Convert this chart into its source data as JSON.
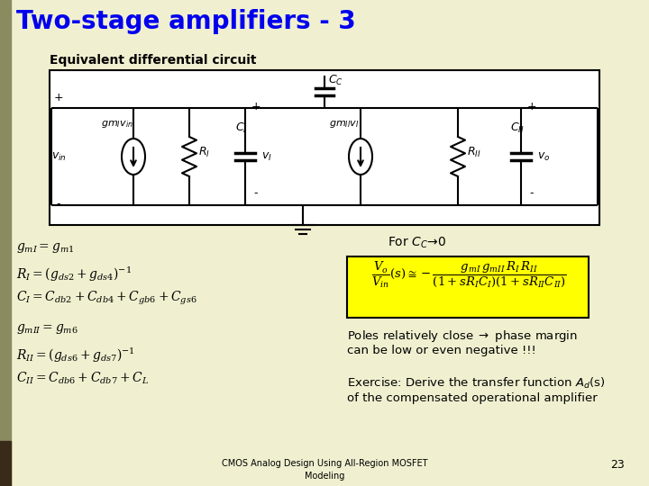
{
  "title": "Two-stage amplifiers - 3",
  "subtitle": "Equivalent differential circuit",
  "bg_color": "#f0f0d0",
  "title_color": "#0000ee",
  "footer_text": "CMOS Analog Design Using All-Region MOSFET\nModeling",
  "page_number": "23",
  "left_bar_color": "#8B8B60"
}
